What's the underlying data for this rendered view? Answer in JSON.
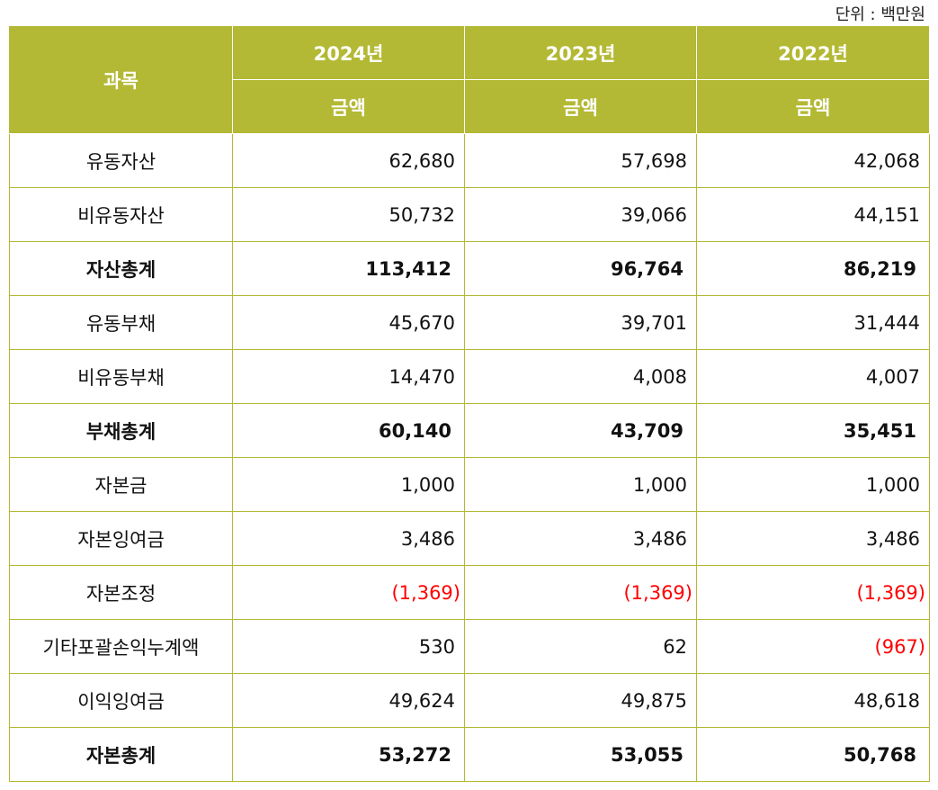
{
  "unit_label": "단위 : 백만원",
  "header": {
    "subject": "과목",
    "years": [
      "2024년",
      "2023년",
      "2022년"
    ],
    "sub": [
      "금액",
      "금액",
      "금액"
    ]
  },
  "negative_color": "#ff0000",
  "header_color": "#b3b934",
  "rows": [
    {
      "label": "유동자산",
      "values": [
        "62,680",
        "57,698",
        "42,068"
      ],
      "bold": false,
      "negative": [
        false,
        false,
        false
      ]
    },
    {
      "label": "비유동자산",
      "values": [
        "50,732",
        "39,066",
        "44,151"
      ],
      "bold": false,
      "negative": [
        false,
        false,
        false
      ]
    },
    {
      "label": "자산총계",
      "values": [
        "113,412",
        "96,764",
        "86,219"
      ],
      "bold": true,
      "negative": [
        false,
        false,
        false
      ]
    },
    {
      "label": "유동부채",
      "values": [
        "45,670",
        "39,701",
        "31,444"
      ],
      "bold": false,
      "negative": [
        false,
        false,
        false
      ]
    },
    {
      "label": "비유동부채",
      "values": [
        "14,470",
        "4,008",
        "4,007"
      ],
      "bold": false,
      "negative": [
        false,
        false,
        false
      ]
    },
    {
      "label": "부채총계",
      "values": [
        "60,140",
        "43,709",
        "35,451"
      ],
      "bold": true,
      "negative": [
        false,
        false,
        false
      ]
    },
    {
      "label": "자본금",
      "values": [
        "1,000",
        "1,000",
        "1,000"
      ],
      "bold": false,
      "negative": [
        false,
        false,
        false
      ]
    },
    {
      "label": "자본잉여금",
      "values": [
        "3,486",
        "3,486",
        "3,486"
      ],
      "bold": false,
      "negative": [
        false,
        false,
        false
      ]
    },
    {
      "label": "자본조정",
      "values": [
        "(1,369)",
        "(1,369)",
        "(1,369)"
      ],
      "bold": false,
      "negative": [
        true,
        true,
        true
      ]
    },
    {
      "label": "기타포괄손익누계액",
      "values": [
        "530",
        "62",
        "(967)"
      ],
      "bold": false,
      "negative": [
        false,
        false,
        true
      ]
    },
    {
      "label": "이익잉여금",
      "values": [
        "49,624",
        "49,875",
        "48,618"
      ],
      "bold": false,
      "negative": [
        false,
        false,
        false
      ]
    },
    {
      "label": "자본총계",
      "values": [
        "53,272",
        "53,055",
        "50,768"
      ],
      "bold": true,
      "negative": [
        false,
        false,
        false
      ]
    }
  ]
}
